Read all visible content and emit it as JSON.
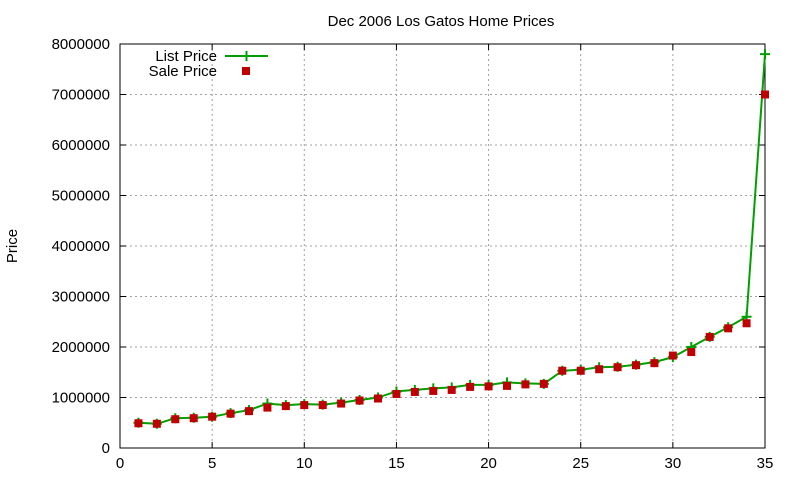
{
  "chart_data": {
    "type": "line",
    "title": "Dec 2006 Los Gatos Home Prices",
    "xlabel": "",
    "ylabel": "Price",
    "xlim": [
      0,
      35
    ],
    "ylim": [
      0,
      8000000
    ],
    "xticks": [
      0,
      5,
      10,
      15,
      20,
      25,
      30,
      35
    ],
    "yticks": [
      0,
      1000000,
      2000000,
      3000000,
      4000000,
      5000000,
      6000000,
      7000000,
      8000000
    ],
    "grid": true,
    "legend_position": "top-left",
    "x": [
      1,
      2,
      3,
      4,
      5,
      6,
      7,
      8,
      9,
      10,
      11,
      12,
      13,
      14,
      15,
      16,
      17,
      18,
      19,
      20,
      21,
      22,
      23,
      24,
      25,
      26,
      27,
      28,
      29,
      30,
      31,
      32,
      33,
      34,
      35
    ],
    "series": [
      {
        "name": "List Price",
        "style": "line+cross",
        "color": "#00a000",
        "values": [
          500000,
          480000,
          590000,
          600000,
          620000,
          690000,
          750000,
          880000,
          850000,
          870000,
          860000,
          900000,
          950000,
          1000000,
          1120000,
          1150000,
          1180000,
          1200000,
          1250000,
          1250000,
          1300000,
          1280000,
          1270000,
          1530000,
          1550000,
          1600000,
          1610000,
          1650000,
          1700000,
          1800000,
          2000000,
          2200000,
          2390000,
          2600000,
          7800000
        ]
      },
      {
        "name": "Sale Price",
        "style": "points-square",
        "color": "#c00000",
        "values": [
          490000,
          480000,
          570000,
          590000,
          620000,
          680000,
          730000,
          800000,
          830000,
          850000,
          850000,
          880000,
          940000,
          980000,
          1070000,
          1110000,
          1130000,
          1150000,
          1210000,
          1220000,
          1230000,
          1260000,
          1270000,
          1530000,
          1530000,
          1560000,
          1600000,
          1640000,
          1680000,
          1830000,
          1900000,
          2200000,
          2370000,
          2470000,
          7000000
        ]
      }
    ]
  }
}
